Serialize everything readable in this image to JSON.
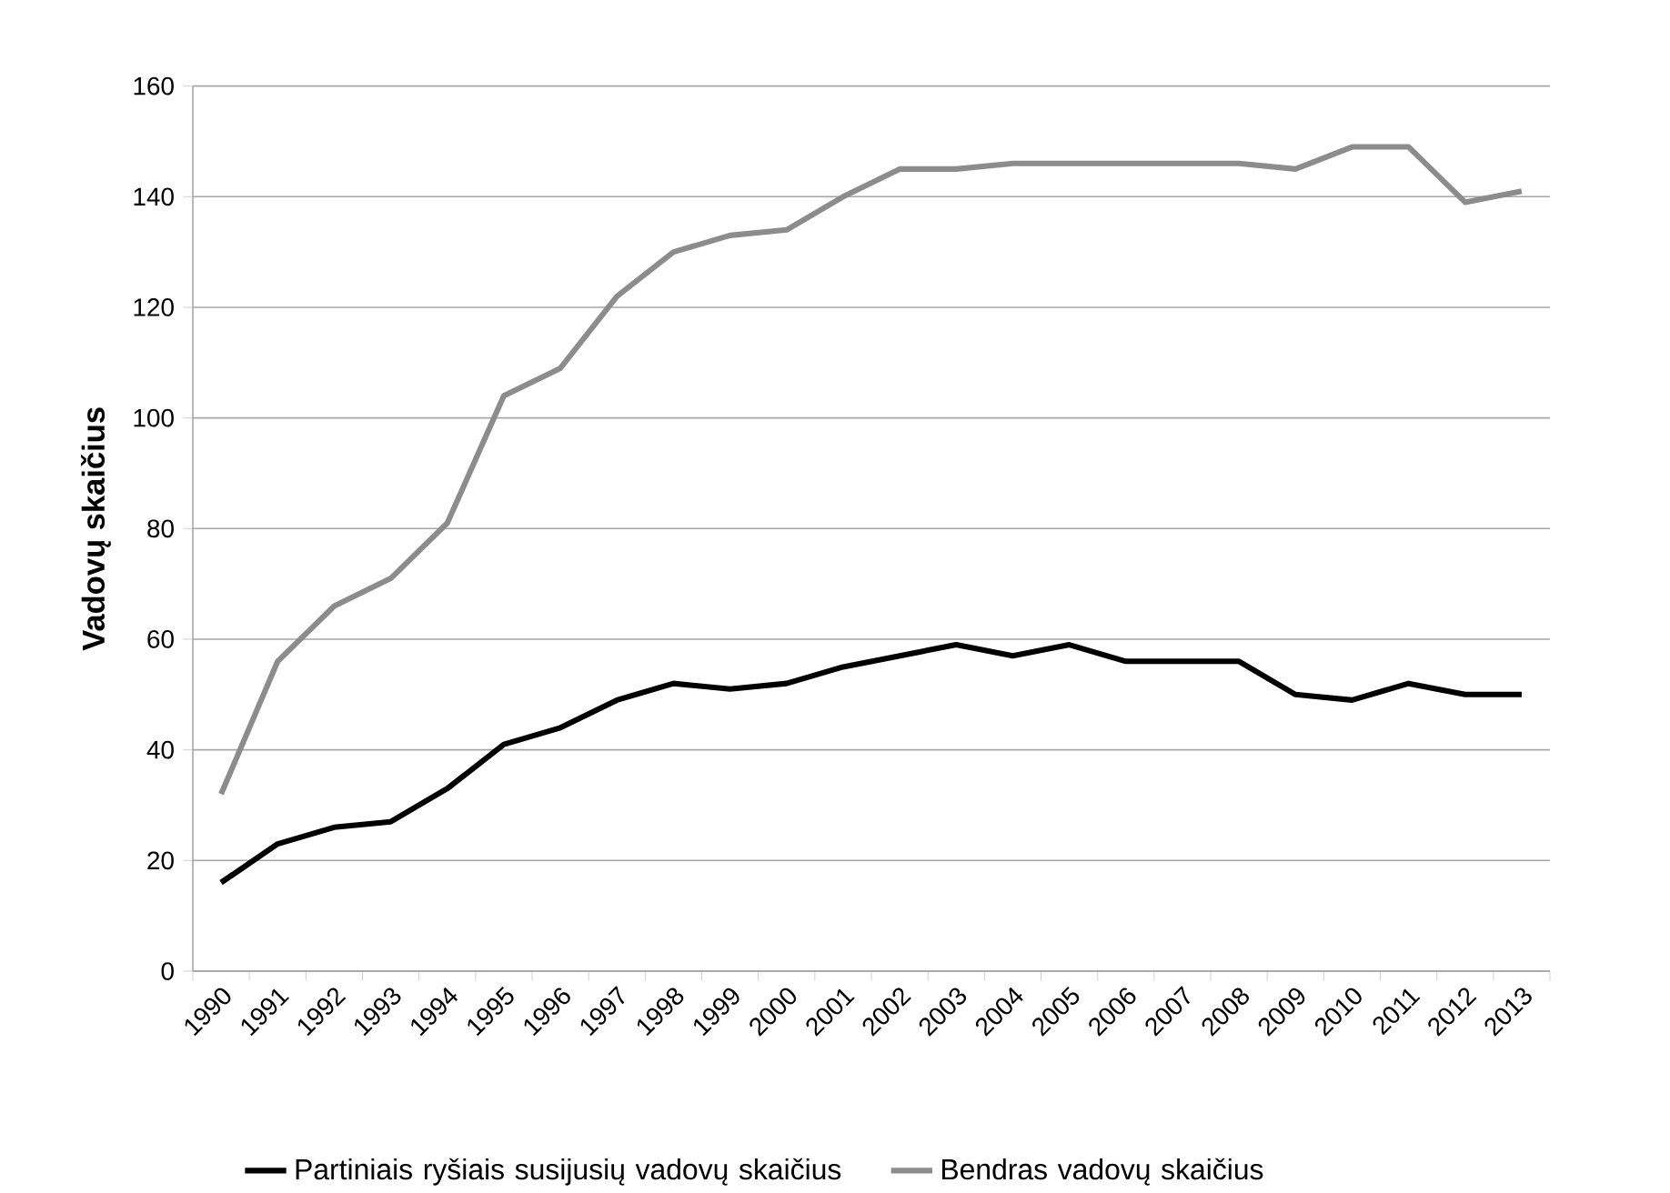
{
  "chart_data": {
    "type": "line",
    "ylabel": "Vadovų skaičius",
    "categories": [
      "1990",
      "1991",
      "1992",
      "1993",
      "1994",
      "1995",
      "1996",
      "1997",
      "1998",
      "1999",
      "2000",
      "2001",
      "2002",
      "2003",
      "2004",
      "2005",
      "2006",
      "2007",
      "2008",
      "2009",
      "2010",
      "2011",
      "2012",
      "2013"
    ],
    "series": [
      {
        "name": "Partiniais ryšiais susijusių vadovų skaičius",
        "color": "#000000",
        "values": [
          16,
          23,
          26,
          27,
          33,
          41,
          44,
          49,
          52,
          51,
          52,
          55,
          57,
          59,
          57,
          59,
          56,
          56,
          56,
          50,
          49,
          52,
          50,
          50
        ]
      },
      {
        "name": "Bendras vadovų skaičius",
        "color": "#8c8c8c",
        "values": [
          32,
          56,
          66,
          71,
          81,
          104,
          109,
          122,
          130,
          133,
          134,
          140,
          145,
          145,
          146,
          146,
          146,
          146,
          146,
          145,
          149,
          149,
          139,
          141
        ]
      }
    ],
    "ylim": [
      0,
      160
    ],
    "yticks": [
      0,
      20,
      40,
      60,
      80,
      100,
      120,
      140,
      160
    ],
    "grid": "y",
    "legend": "bottom",
    "marker": "none",
    "line_style": "solid"
  }
}
